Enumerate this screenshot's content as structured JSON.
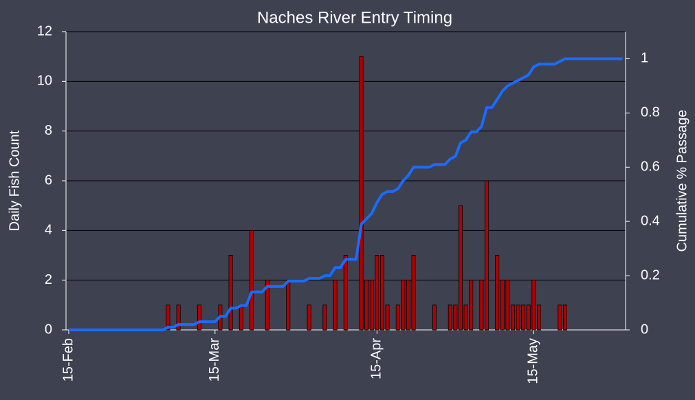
{
  "chart_data": {
    "type": "bar",
    "title": "Naches River Entry Timing",
    "y_label": "Daily Fish Count",
    "y2_label": "Cumulative % Passage",
    "categories": [
      "15-Feb",
      null,
      null,
      null,
      null,
      null,
      null,
      null,
      null,
      null,
      null,
      null,
      null,
      null,
      null,
      null,
      null,
      null,
      null,
      null,
      null,
      null,
      null,
      null,
      null,
      null,
      null,
      null,
      "15-Mar",
      null,
      null,
      null,
      null,
      null,
      null,
      null,
      null,
      null,
      null,
      null,
      null,
      null,
      null,
      null,
      null,
      null,
      null,
      null,
      null,
      null,
      null,
      null,
      null,
      null,
      null,
      null,
      null,
      null,
      null,
      "15-Apr",
      null,
      null,
      null,
      null,
      null,
      null,
      null,
      null,
      null,
      null,
      null,
      null,
      null,
      null,
      null,
      null,
      null,
      null,
      null,
      null,
      null,
      null,
      null,
      null,
      null,
      null,
      null,
      null,
      null,
      "15-May",
      null,
      null,
      null,
      null,
      null,
      null,
      null,
      null,
      null,
      null,
      null,
      null,
      null,
      null,
      null,
      null,
      null
    ],
    "series": [
      {
        "name": "Daily Fish Count",
        "color": "#b30000",
        "values": [
          0,
          0,
          0,
          0,
          0,
          0,
          0,
          0,
          0,
          0,
          0,
          0,
          0,
          0,
          0,
          0,
          0,
          0,
          0,
          1,
          0,
          1,
          0,
          0,
          0,
          1,
          0,
          0,
          0,
          1,
          0,
          3,
          0,
          1,
          0,
          4,
          0,
          0,
          2,
          0,
          0,
          0,
          2,
          0,
          0,
          0,
          1,
          0,
          0,
          1,
          0,
          2,
          0,
          3,
          0,
          0,
          11,
          2,
          2,
          3,
          3,
          1,
          0,
          1,
          2,
          2,
          3,
          0,
          0,
          0,
          1,
          0,
          0,
          1,
          1,
          5,
          1,
          2,
          0,
          2,
          6,
          0,
          3,
          2,
          2,
          1,
          1,
          1,
          1,
          2,
          1,
          0,
          0,
          0,
          1,
          1,
          0,
          0,
          0,
          0,
          0,
          0,
          0,
          0,
          0,
          0,
          0
        ]
      },
      {
        "name": "Cumulative % Passage",
        "type": "line",
        "axis": "y2",
        "color": "#1a6cff",
        "values": [
          0,
          0,
          0,
          0,
          0,
          0,
          0,
          0,
          0,
          0,
          0,
          0,
          0,
          0,
          0,
          0,
          0,
          0,
          0,
          0.01,
          0.01,
          0.02,
          0.02,
          0.02,
          0.02,
          0.03,
          0.03,
          0.03,
          0.03,
          0.05,
          0.05,
          0.08,
          0.08,
          0.09,
          0.09,
          0.14,
          0.14,
          0.14,
          0.16,
          0.16,
          0.16,
          0.16,
          0.18,
          0.18,
          0.18,
          0.18,
          0.19,
          0.19,
          0.19,
          0.2,
          0.2,
          0.23,
          0.23,
          0.26,
          0.26,
          0.26,
          0.39,
          0.41,
          0.43,
          0.47,
          0.5,
          0.51,
          0.51,
          0.52,
          0.55,
          0.57,
          0.6,
          0.6,
          0.6,
          0.6,
          0.61,
          0.61,
          0.61,
          0.63,
          0.64,
          0.69,
          0.7,
          0.73,
          0.73,
          0.75,
          0.82,
          0.82,
          0.85,
          0.88,
          0.9,
          0.91,
          0.92,
          0.93,
          0.94,
          0.97,
          0.98,
          0.98,
          0.98,
          0.98,
          0.99,
          1,
          1,
          1,
          1,
          1,
          1,
          1,
          1,
          1,
          1,
          1,
          1
        ]
      }
    ],
    "ylim": [
      0,
      12
    ],
    "yticks": [
      0,
      2,
      4,
      6,
      8,
      10,
      12
    ],
    "y2lim": [
      0,
      1.1
    ],
    "y2ticks": [
      0,
      0.2,
      0.4,
      0.6,
      0.8,
      1
    ],
    "grid": true
  }
}
